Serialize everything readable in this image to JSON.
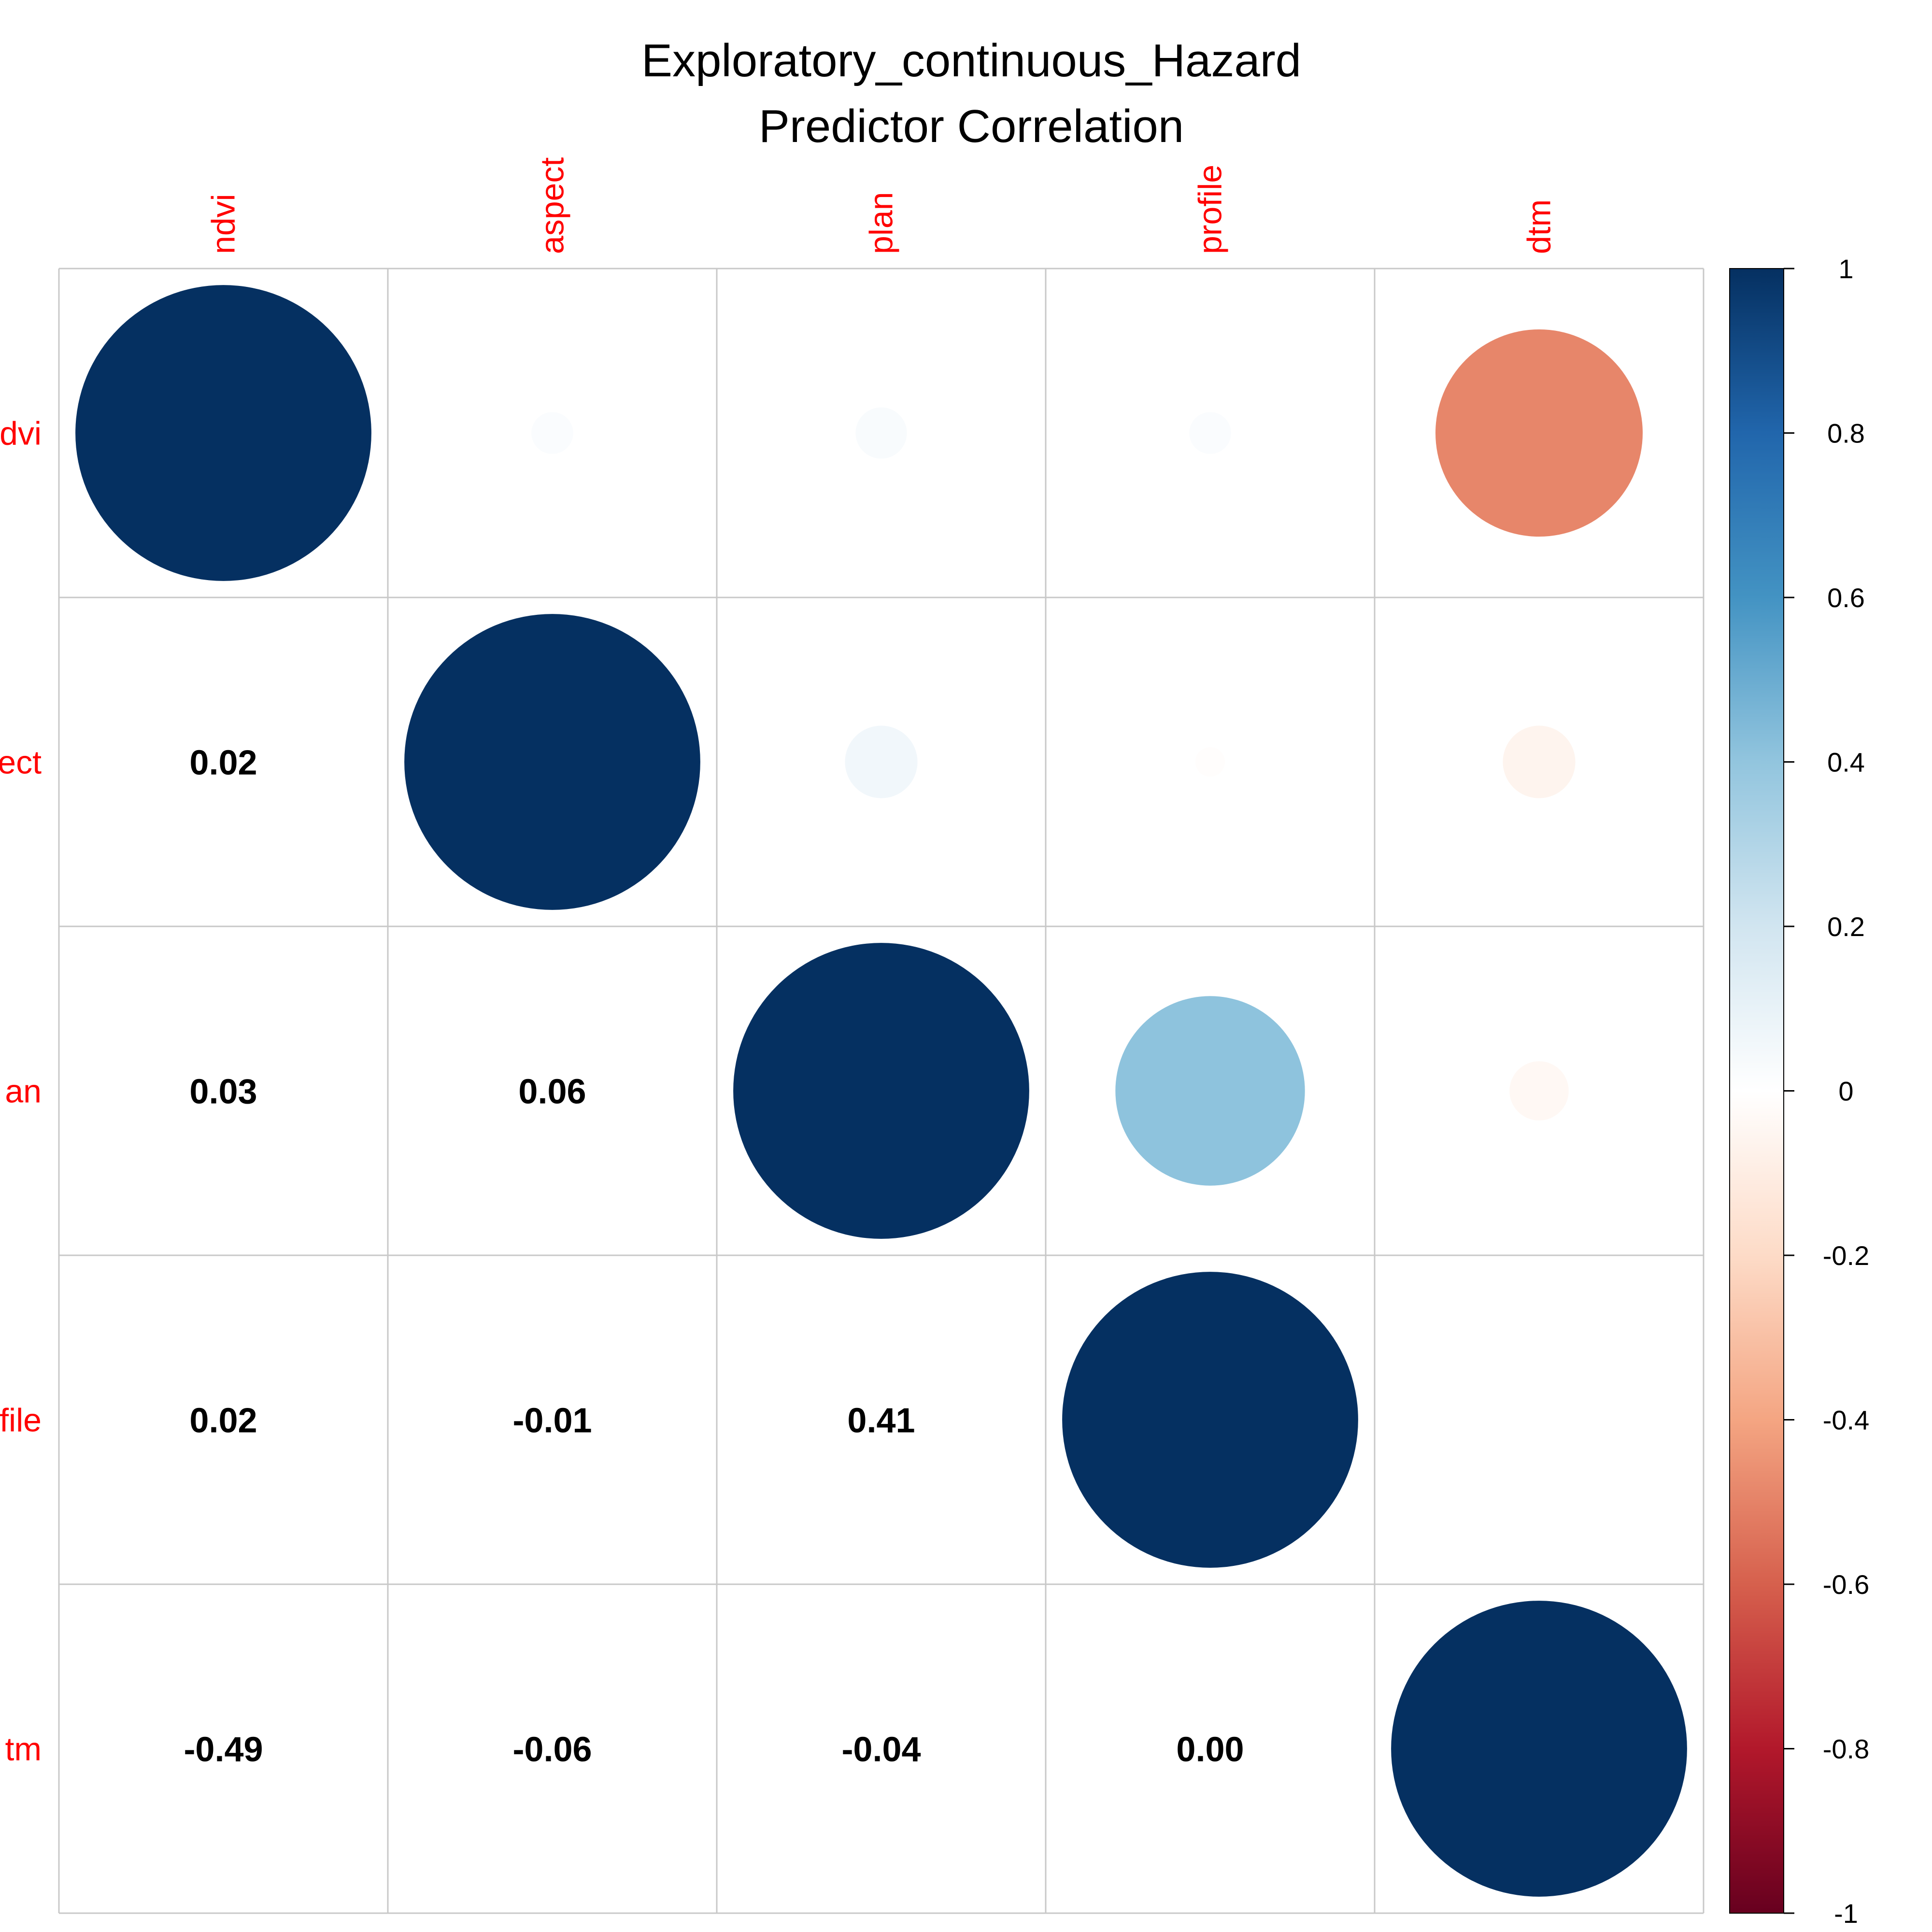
{
  "chart_data": {
    "type": "heatmap",
    "title": "Exploratory_continuous_Hazard",
    "subtitle": "Predictor Correlation",
    "variables": [
      "ndvi",
      "aspect",
      "plan",
      "profile",
      "dtm"
    ],
    "row_labels_visible": [
      "dvi",
      "ect",
      "an",
      "file",
      "tm"
    ],
    "matrix": [
      [
        1.0,
        0.02,
        0.03,
        0.02,
        -0.49
      ],
      [
        0.02,
        1.0,
        0.06,
        -0.01,
        -0.06
      ],
      [
        0.03,
        0.06,
        1.0,
        0.41,
        -0.04
      ],
      [
        0.02,
        -0.01,
        0.41,
        1.0,
        0.0
      ],
      [
        -0.49,
        -0.06,
        -0.04,
        0.0,
        1.0
      ]
    ],
    "lower_triangle_labels": [
      {
        "row": 1,
        "col": 0,
        "label": "0.02"
      },
      {
        "row": 2,
        "col": 0,
        "label": "0.03"
      },
      {
        "row": 2,
        "col": 1,
        "label": "0.06"
      },
      {
        "row": 3,
        "col": 0,
        "label": "0.02"
      },
      {
        "row": 3,
        "col": 1,
        "label": "-0.01"
      },
      {
        "row": 3,
        "col": 2,
        "label": "0.41"
      },
      {
        "row": 4,
        "col": 0,
        "label": "-0.49"
      },
      {
        "row": 4,
        "col": 1,
        "label": "-0.06"
      },
      {
        "row": 4,
        "col": 2,
        "label": "-0.04"
      },
      {
        "row": 4,
        "col": 3,
        "label": "0.00"
      }
    ],
    "upper_method": "circle",
    "colorbar": {
      "range": [
        -1,
        1
      ],
      "ticks": [
        "1",
        "0.8",
        "0.6",
        "0.4",
        "0.2",
        "0",
        "-0.2",
        "-0.4",
        "-0.6",
        "-0.8",
        "-1"
      ],
      "tick_values": [
        1,
        0.8,
        0.6,
        0.4,
        0.2,
        0,
        -0.2,
        -0.4,
        -0.6,
        -0.8,
        -1
      ],
      "stops": [
        {
          "value": -1.0,
          "color": "#67001F"
        },
        {
          "value": -0.8,
          "color": "#B2182B"
        },
        {
          "value": -0.6,
          "color": "#D6604D"
        },
        {
          "value": -0.4,
          "color": "#F4A582"
        },
        {
          "value": -0.2,
          "color": "#FDDBC7"
        },
        {
          "value": 0.0,
          "color": "#FFFFFF"
        },
        {
          "value": 0.2,
          "color": "#D1E5F0"
        },
        {
          "value": 0.4,
          "color": "#92C5DE"
        },
        {
          "value": 0.6,
          "color": "#4393C3"
        },
        {
          "value": 0.8,
          "color": "#2166AC"
        },
        {
          "value": 1.0,
          "color": "#053061"
        }
      ]
    },
    "colors": {
      "label": "#FF0000",
      "grid": "#C8C8C8",
      "text": "#000000"
    }
  }
}
